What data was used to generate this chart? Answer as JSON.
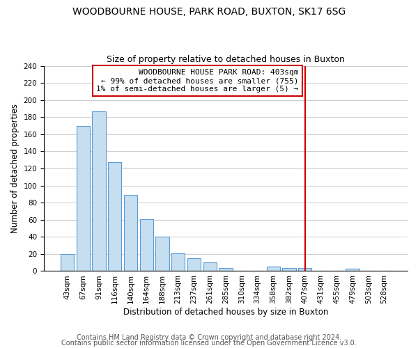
{
  "title": "WOODBOURNE HOUSE, PARK ROAD, BUXTON, SK17 6SG",
  "subtitle": "Size of property relative to detached houses in Buxton",
  "xlabel": "Distribution of detached houses by size in Buxton",
  "ylabel": "Number of detached properties",
  "bar_labels": [
    "43sqm",
    "67sqm",
    "91sqm",
    "116sqm",
    "140sqm",
    "164sqm",
    "188sqm",
    "213sqm",
    "237sqm",
    "261sqm",
    "285sqm",
    "310sqm",
    "334sqm",
    "358sqm",
    "382sqm",
    "407sqm",
    "431sqm",
    "455sqm",
    "479sqm",
    "503sqm",
    "528sqm"
  ],
  "bar_values": [
    20,
    170,
    187,
    127,
    89,
    61,
    40,
    21,
    15,
    10,
    4,
    0,
    0,
    5,
    4,
    4,
    0,
    0,
    3,
    0,
    0
  ],
  "bar_color": "#c5dff0",
  "bar_edge_color": "#5b9bd5",
  "grid_color": "#cccccc",
  "vline_x_index": 15,
  "vline_color": "#cc0000",
  "annotation_line1": "WOODBOURNE HOUSE PARK ROAD: 403sqm",
  "annotation_line2": "← 99% of detached houses are smaller (755)",
  "annotation_line3": "1% of semi-detached houses are larger (5) →",
  "annotation_box_color": "#ffffff",
  "annotation_box_edgecolor": "#cc0000",
  "ylim": [
    0,
    240
  ],
  "yticks": [
    0,
    20,
    40,
    60,
    80,
    100,
    120,
    140,
    160,
    180,
    200,
    220,
    240
  ],
  "footer1": "Contains HM Land Registry data © Crown copyright and database right 2024.",
  "footer2": "Contains public sector information licensed under the Open Government Licence v3.0.",
  "title_fontsize": 10,
  "subtitle_fontsize": 9,
  "axis_label_fontsize": 8.5,
  "tick_fontsize": 7.5,
  "annotation_fontsize": 8,
  "footer_fontsize": 7
}
